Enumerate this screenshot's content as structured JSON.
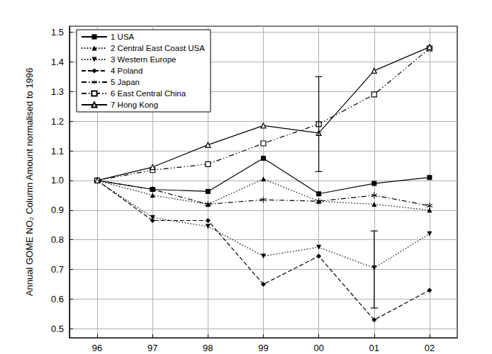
{
  "chart_data": {
    "type": "line",
    "y_label": "Annual GOME NO₂ Column Amount normalised to 1996",
    "categories": [
      "96",
      "97",
      "98",
      "99",
      "00",
      "01",
      "02"
    ],
    "ylim": [
      0.47,
      1.52
    ],
    "yticks": [
      0.5,
      0.6,
      0.7,
      0.8,
      0.9,
      {
        "value": 1,
        "label": "1.0"
      },
      1.1,
      1.2,
      1.3,
      1.4,
      1.5
    ],
    "grid": true,
    "legend": "top-left",
    "series": [
      {
        "name": "1 USA",
        "color": "#000000",
        "marker": "square",
        "line_style": "solid",
        "values": [
          1.0,
          0.97,
          0.963,
          1.075,
          0.955,
          0.99,
          1.01
        ]
      },
      {
        "name": "2 Central East Coast USA",
        "color": "#000000",
        "marker": "triangle",
        "line_style": "dotted",
        "values": [
          1.0,
          0.95,
          0.92,
          1.005,
          0.93,
          0.92,
          0.9
        ]
      },
      {
        "name": "3 Western Europe",
        "color": "#000000",
        "marker": "triangle-down",
        "line_style": "dotted",
        "values": [
          1.0,
          0.875,
          0.845,
          0.745,
          0.775,
          0.705,
          0.82
        ],
        "error_bars": [
          null,
          null,
          null,
          null,
          null,
          [
            0.57,
            0.83
          ],
          null
        ]
      },
      {
        "name": "4 Poland",
        "color": "#000000",
        "marker": "diamond",
        "line_style": "dashed",
        "values": [
          1.0,
          0.865,
          0.865,
          0.65,
          0.745,
          0.53,
          0.63
        ]
      },
      {
        "name": "5 Japan",
        "color": "#000000",
        "marker": "asterisk",
        "line_style": "dashdot",
        "values": [
          1.0,
          0.97,
          0.92,
          0.935,
          0.93,
          0.95,
          0.915
        ]
      },
      {
        "name": "6 East Central China",
        "color": "#000000",
        "marker": "open-square",
        "line_style": "dashdotdot",
        "values": [
          1.0,
          1.035,
          1.055,
          1.125,
          1.19,
          1.29,
          1.445
        ],
        "error_bars": [
          null,
          null,
          null,
          null,
          [
            1.03,
            1.35
          ],
          null,
          null
        ]
      },
      {
        "name": "7 Hong Kong",
        "color": "#000000",
        "marker": "open-triangle",
        "line_style": "solid",
        "values": [
          1.0,
          1.045,
          1.12,
          1.185,
          1.16,
          1.37,
          1.45
        ]
      }
    ]
  }
}
